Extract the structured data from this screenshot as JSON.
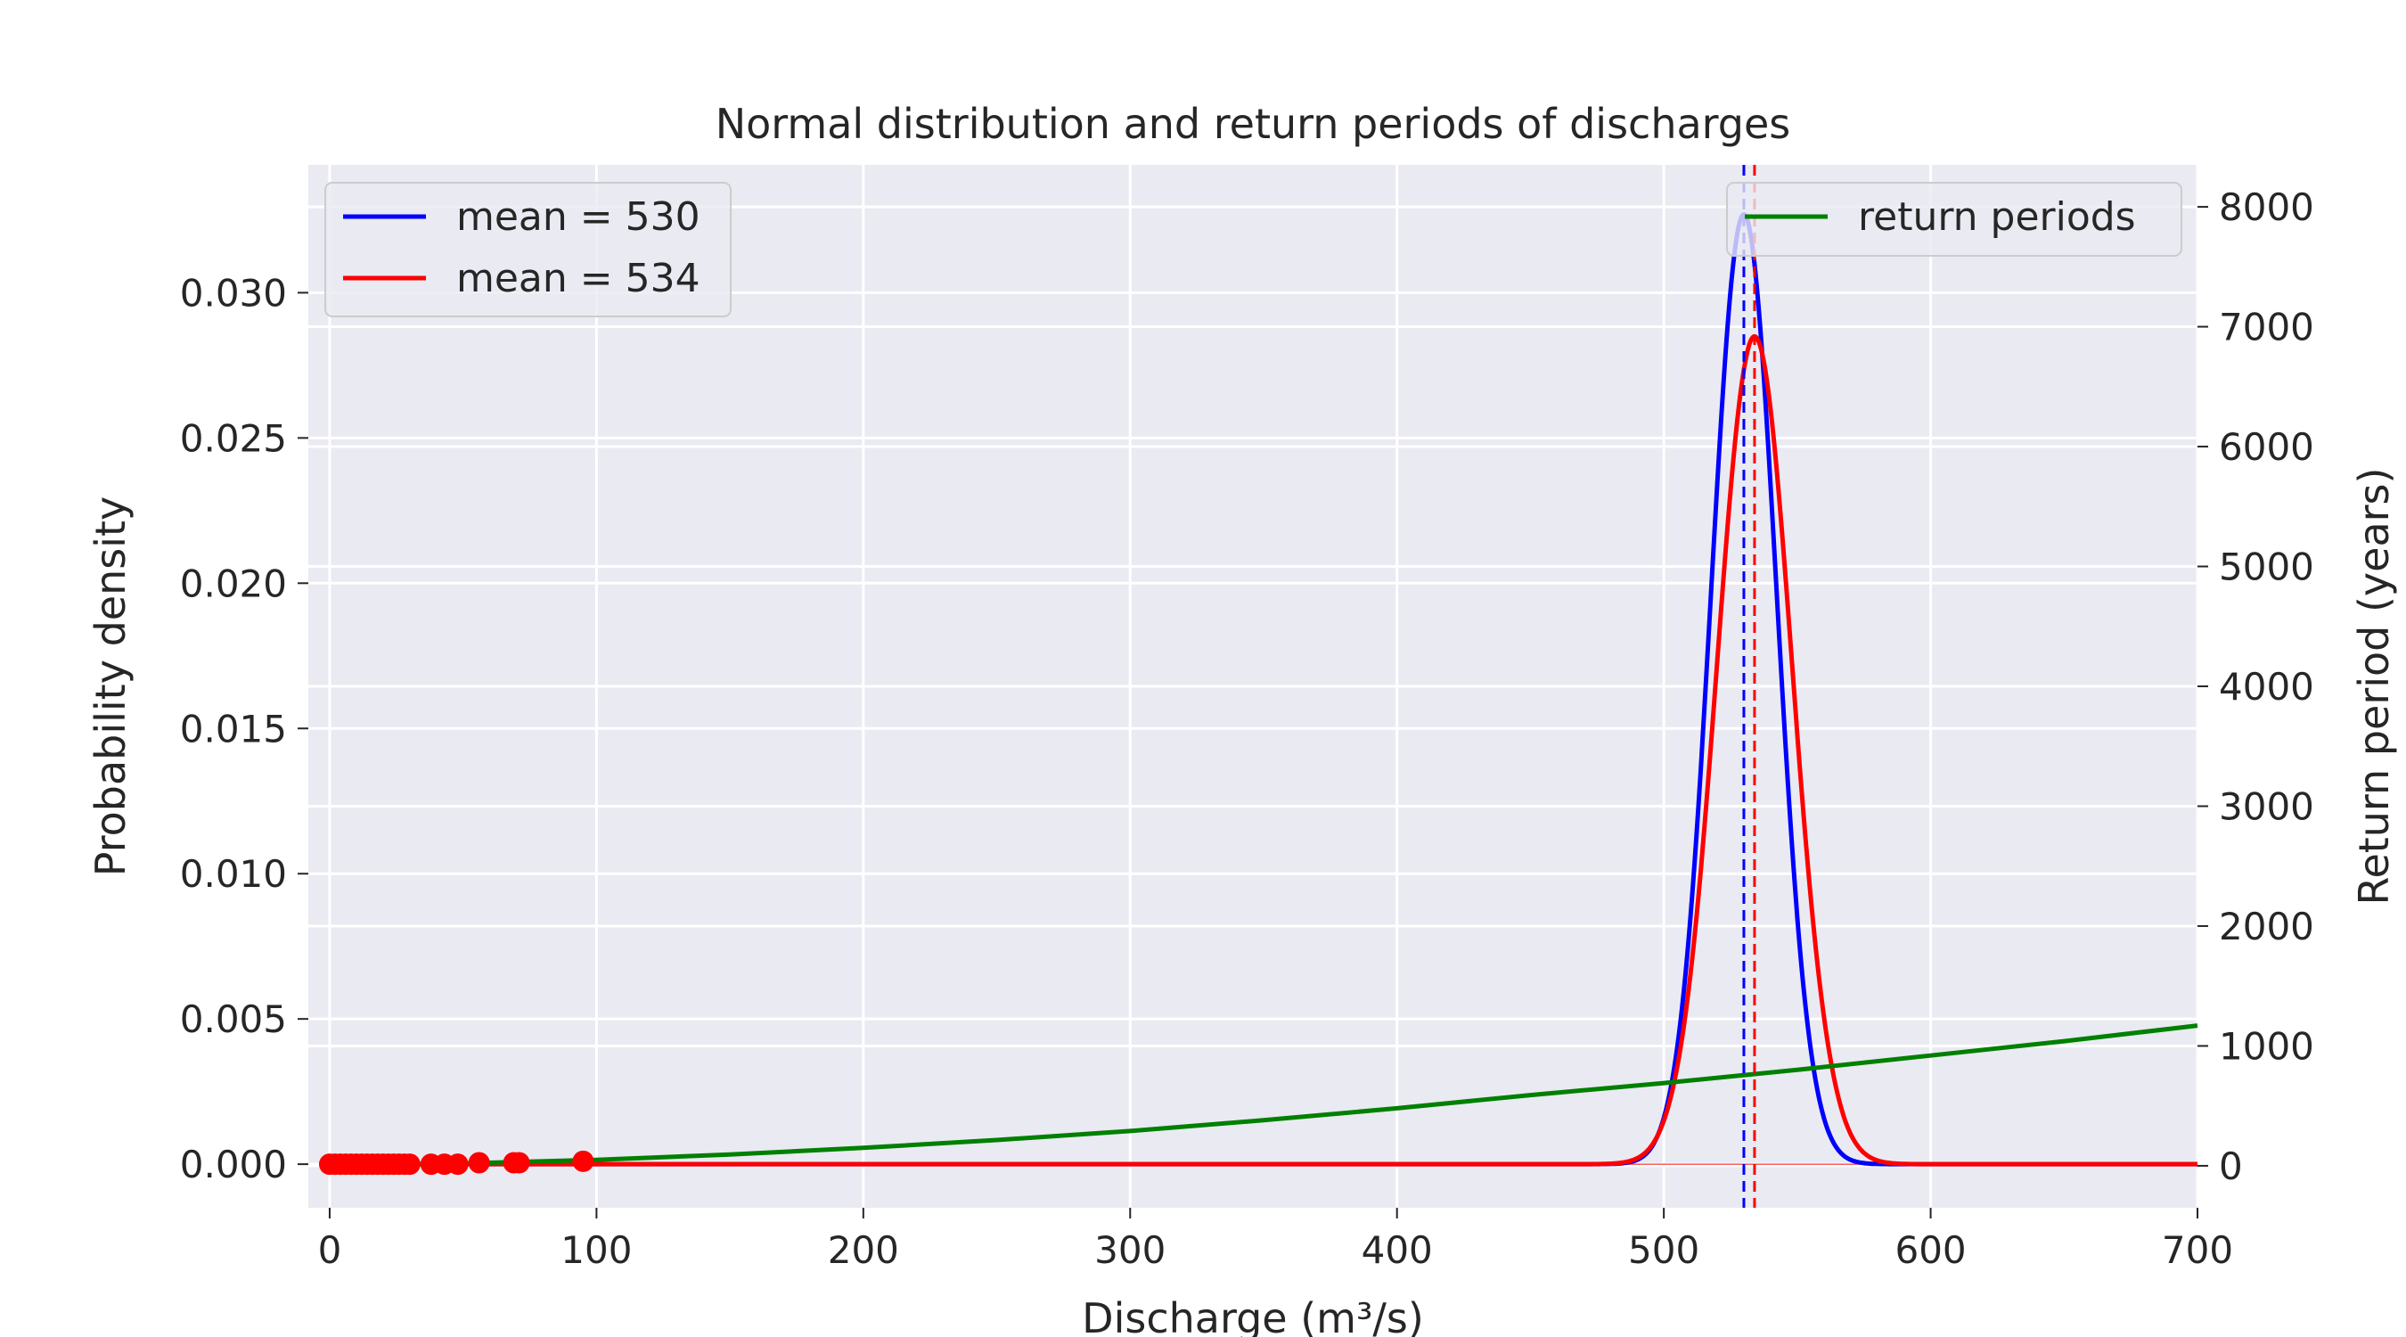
{
  "chart_data": {
    "type": "line",
    "title": "Normal distribution and return periods of discharges",
    "xlabel": "Discharge (m³/s)",
    "ylabel_left": "Probability density",
    "ylabel_right": "Return period (years)",
    "xlim": [
      -8,
      700
    ],
    "ylim_left": [
      -0.0015,
      0.0344
    ],
    "ylim_right": [
      -350,
      8350
    ],
    "x_ticks": [
      0,
      100,
      200,
      300,
      400,
      500,
      600,
      700
    ],
    "y_left_ticks": [
      0.0,
      0.005,
      0.01,
      0.015,
      0.02,
      0.025,
      0.03
    ],
    "y_left_tick_labels": [
      "0.000",
      "0.005",
      "0.010",
      "0.015",
      "0.020",
      "0.025",
      "0.030"
    ],
    "y_right_ticks": [
      0,
      1000,
      2000,
      3000,
      4000,
      5000,
      6000,
      7000,
      8000
    ],
    "y_right_tick_labels": [
      "0",
      "1000",
      "2000",
      "3000",
      "4000",
      "5000",
      "6000",
      "7000",
      "8000"
    ],
    "grid": true,
    "series": [
      {
        "name": "mean = 530",
        "axis": "left",
        "kind": "normal-pdf",
        "mean": 530,
        "std": 12.2,
        "color": "#0000ff"
      },
      {
        "name": "mean = 534",
        "axis": "left",
        "kind": "normal-pdf",
        "mean": 534,
        "std": 14.0,
        "color": "#ff0000"
      },
      {
        "name": "return periods",
        "axis": "right",
        "kind": "curve",
        "x": [
          0,
          50,
          100,
          150,
          200,
          250,
          300,
          350,
          400,
          450,
          500,
          550,
          600,
          650,
          700
        ],
        "y": [
          0,
          20,
          50,
          95,
          150,
          215,
          290,
          380,
          480,
          590,
          690,
          800,
          920,
          1040,
          1170
        ],
        "color": "#008000"
      }
    ],
    "vlines": [
      {
        "x": 530,
        "color": "#0000ff",
        "style": "dashed"
      },
      {
        "x": 534,
        "color": "#ff0000",
        "style": "dashed"
      }
    ],
    "scatter": {
      "color": "#ff0000",
      "x": [
        0,
        2,
        4,
        6,
        8,
        10,
        12,
        14,
        16,
        18,
        20,
        22,
        24,
        26,
        28,
        30,
        38,
        43,
        48,
        56,
        69,
        71,
        95
      ],
      "y": [
        0,
        0,
        0,
        0,
        0,
        0,
        0,
        0,
        0,
        0,
        0,
        0,
        0,
        0,
        0,
        0,
        0,
        0,
        0,
        5e-05,
        5e-05,
        5e-05,
        0.0001
      ]
    },
    "legend_left": {
      "placement": "upper-left",
      "entries": [
        "mean = 530",
        "mean = 534"
      ]
    },
    "legend_right": {
      "placement": "upper-right",
      "entries": [
        "return periods"
      ]
    }
  }
}
